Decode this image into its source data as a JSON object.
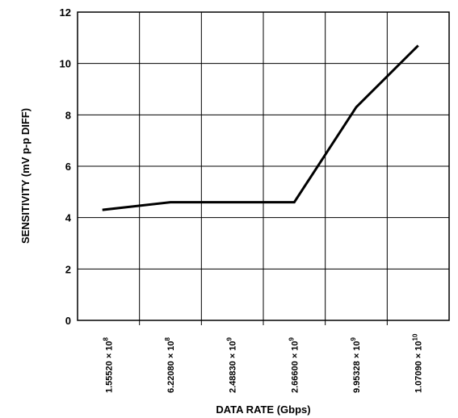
{
  "chart_data": {
    "type": "line",
    "xlabel": "DATA RATE (Gbps)",
    "ylabel": "SENSITIVITY (mV p-p DIFF)",
    "ylim": [
      0,
      12
    ],
    "yticks": [
      0,
      2,
      4,
      6,
      8,
      10,
      12
    ],
    "categories": [
      {
        "mantissa": "1.55520",
        "exp": "8"
      },
      {
        "mantissa": "6.22080",
        "exp": "8"
      },
      {
        "mantissa": "2.48830",
        "exp": "9"
      },
      {
        "mantissa": "2.66600",
        "exp": "9"
      },
      {
        "mantissa": "9.95328",
        "exp": "9"
      },
      {
        "mantissa": "1.07090",
        "exp": "10"
      }
    ],
    "series": [
      {
        "values": [
          4.3,
          4.6,
          4.6,
          4.6,
          8.3,
          10.7
        ]
      }
    ],
    "grid": true,
    "line_color": "#000000"
  }
}
